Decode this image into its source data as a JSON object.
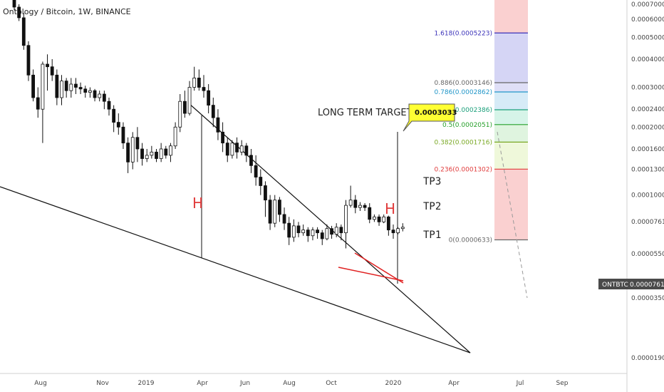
{
  "symbol": {
    "title": "Ontology / Bitcoin, 1W, BINANCE"
  },
  "price_tag": {
    "label": "ONTBTC",
    "value": "0.0000761",
    "color": "#4a4a4a"
  },
  "annotations": {
    "long_term_target": "LONG TERM TARGET",
    "target_value": "0.0003033",
    "target_bg": "#ffff33",
    "h_left": "H",
    "h_right": "H",
    "tp1": "TP1",
    "tp2": "TP2",
    "tp3": "TP3"
  },
  "y_axis_labels": [
    "0.0007000",
    "0.0006000",
    "0.0005000",
    "0.0004000",
    "0.0003000",
    "0.0002400",
    "0.0002000",
    "0.0001600",
    "0.0001300",
    "0.0001000",
    "0.0000761",
    "0.0000550",
    "0.0000350",
    "0.0000190"
  ],
  "x_axis_labels": [
    "Aug",
    "Nov",
    "2019",
    "Apr",
    "Jun",
    "Aug",
    "Oct",
    "2020",
    "Apr",
    "Jul",
    "Sep"
  ],
  "fib_levels": [
    {
      "label": "1.618(0.0005223)",
      "color": "#3b32b9"
    },
    {
      "label": "0.886(0.0003146)",
      "color": "#666666"
    },
    {
      "label": "0.786(0.0002862)",
      "color": "#2196c8"
    },
    {
      "label": "0.618(0.0002386)",
      "color": "#1a9f7a"
    },
    {
      "label": "0.5(0.0002051)",
      "color": "#27a02b"
    },
    {
      "label": "0.382(0.0001716)",
      "color": "#79a823"
    },
    {
      "label": "0.236(0.0001302)",
      "color": "#e03c3c"
    },
    {
      "label": "0(0.0000633)",
      "color": "#666666"
    }
  ],
  "chart_data": {
    "type": "candlestick",
    "title": "Ontology / Bitcoin, 1W, BINANCE",
    "y_scale": "log",
    "ylim": [
      1.68e-05,
      0.00075
    ],
    "candles": [
      {
        "o": 0.00074,
        "h": 0.00076,
        "c": 0.00068,
        "l": 0.00066
      },
      {
        "o": 0.00068,
        "h": 0.0007,
        "c": 0.00061,
        "l": 0.00059
      },
      {
        "o": 0.00061,
        "h": 0.00064,
        "c": 0.00046,
        "l": 0.00044
      },
      {
        "o": 0.00046,
        "h": 0.00048,
        "c": 0.00034,
        "l": 0.00032
      },
      {
        "o": 0.00034,
        "h": 0.00036,
        "c": 0.00027,
        "l": 0.00026
      },
      {
        "o": 0.00027,
        "h": 0.0003,
        "c": 0.00024,
        "l": 0.00022
      },
      {
        "o": 0.00024,
        "h": 0.00039,
        "c": 0.00038,
        "l": 0.00017
      },
      {
        "o": 0.00038,
        "h": 0.00042,
        "c": 0.00037,
        "l": 0.00029
      },
      {
        "o": 0.00037,
        "h": 0.0004,
        "c": 0.00034,
        "l": 0.00032
      },
      {
        "o": 0.00034,
        "h": 0.00036,
        "c": 0.00027,
        "l": 0.00025
      },
      {
        "o": 0.00027,
        "h": 0.00034,
        "c": 0.00032,
        "l": 0.00025
      },
      {
        "o": 0.00032,
        "h": 0.00033,
        "c": 0.00029,
        "l": 0.00027
      },
      {
        "o": 0.00029,
        "h": 0.00033,
        "c": 0.00031,
        "l": 0.00027
      },
      {
        "o": 0.00031,
        "h": 0.00033,
        "c": 0.0003,
        "l": 0.00028
      },
      {
        "o": 0.0003,
        "h": 0.000315,
        "c": 0.000295,
        "l": 0.00028
      },
      {
        "o": 0.000295,
        "h": 0.000305,
        "c": 0.000285,
        "l": 0.00027
      },
      {
        "o": 0.000285,
        "h": 0.0003,
        "c": 0.00029,
        "l": 0.00027
      },
      {
        "o": 0.00029,
        "h": 0.000295,
        "c": 0.00027,
        "l": 0.00026
      },
      {
        "o": 0.00027,
        "h": 0.00029,
        "c": 0.00028,
        "l": 0.00026
      },
      {
        "o": 0.00028,
        "h": 0.00029,
        "c": 0.00026,
        "l": 0.00024
      },
      {
        "o": 0.00026,
        "h": 0.00027,
        "c": 0.00024,
        "l": 0.000225
      },
      {
        "o": 0.00024,
        "h": 0.00025,
        "c": 0.00021,
        "l": 0.00019
      },
      {
        "o": 0.00021,
        "h": 0.00023,
        "c": 0.0002,
        "l": 0.000185
      },
      {
        "o": 0.0002,
        "h": 0.00021,
        "c": 0.00017,
        "l": 0.00016
      },
      {
        "o": 0.00017,
        "h": 0.00018,
        "c": 0.00014,
        "l": 0.000125
      },
      {
        "o": 0.00014,
        "h": 0.00019,
        "c": 0.00018,
        "l": 0.00013
      },
      {
        "o": 0.00018,
        "h": 0.0002,
        "c": 0.00016,
        "l": 0.00014
      },
      {
        "o": 0.00016,
        "h": 0.00017,
        "c": 0.000145,
        "l": 0.000135
      },
      {
        "o": 0.000145,
        "h": 0.00016,
        "c": 0.00015,
        "l": 0.00014
      },
      {
        "o": 0.00015,
        "h": 0.000165,
        "c": 0.000155,
        "l": 0.000145
      },
      {
        "o": 0.000155,
        "h": 0.00016,
        "c": 0.000145,
        "l": 0.00014
      },
      {
        "o": 0.000145,
        "h": 0.00017,
        "c": 0.00016,
        "l": 0.00014
      },
      {
        "o": 0.00016,
        "h": 0.000165,
        "c": 0.00015,
        "l": 0.000145
      },
      {
        "o": 0.00015,
        "h": 0.00017,
        "c": 0.000165,
        "l": 0.00014
      },
      {
        "o": 0.000165,
        "h": 0.00021,
        "c": 0.0002,
        "l": 0.00016
      },
      {
        "o": 0.0002,
        "h": 0.00028,
        "c": 0.00026,
        "l": 0.00019
      },
      {
        "o": 0.00026,
        "h": 0.00029,
        "c": 0.00023,
        "l": 0.00022
      },
      {
        "o": 0.00023,
        "h": 0.00032,
        "c": 0.0003,
        "l": 0.000225
      },
      {
        "o": 0.0003,
        "h": 0.00037,
        "c": 0.00033,
        "l": 0.00029
      },
      {
        "o": 0.00033,
        "h": 0.00036,
        "c": 0.0003,
        "l": 0.00029
      },
      {
        "o": 0.0003,
        "h": 0.00034,
        "c": 0.00029,
        "l": 0.00027
      },
      {
        "o": 0.00029,
        "h": 0.00031,
        "c": 0.00025,
        "l": 0.00023
      },
      {
        "o": 0.00025,
        "h": 0.00027,
        "c": 0.00022,
        "l": 0.0002
      },
      {
        "o": 0.00022,
        "h": 0.00024,
        "c": 0.00019,
        "l": 0.000175
      },
      {
        "o": 0.00019,
        "h": 0.00021,
        "c": 0.00017,
        "l": 0.000155
      },
      {
        "o": 0.00017,
        "h": 0.00018,
        "c": 0.00015,
        "l": 0.00014
      },
      {
        "o": 0.00015,
        "h": 0.000175,
        "c": 0.00017,
        "l": 0.000145
      },
      {
        "o": 0.00017,
        "h": 0.00018,
        "c": 0.000155,
        "l": 0.000145
      },
      {
        "o": 0.000155,
        "h": 0.000175,
        "c": 0.000165,
        "l": 0.00015
      },
      {
        "o": 0.000165,
        "h": 0.00017,
        "c": 0.00015,
        "l": 0.00014
      },
      {
        "o": 0.00015,
        "h": 0.00016,
        "c": 0.000135,
        "l": 0.000125
      },
      {
        "o": 0.000135,
        "h": 0.00015,
        "c": 0.00012,
        "l": 0.00011
      },
      {
        "o": 0.00012,
        "h": 0.00013,
        "c": 0.00011,
        "l": 0.0001
      },
      {
        "o": 0.00011,
        "h": 0.000115,
        "c": 9.5e-05,
        "l": 8e-05
      },
      {
        "o": 9.5e-05,
        "h": 0.0001,
        "c": 7.5e-05,
        "l": 7e-05
      },
      {
        "o": 7.5e-05,
        "h": 0.0001,
        "c": 9.5e-05,
        "l": 7.2e-05
      },
      {
        "o": 9.5e-05,
        "h": 9.8e-05,
        "c": 8.2e-05,
        "l": 7.6e-05
      },
      {
        "o": 8.2e-05,
        "h": 8.8e-05,
        "c": 7.5e-05,
        "l": 7e-05
      },
      {
        "o": 7.5e-05,
        "h": 8e-05,
        "c": 6.5e-05,
        "l": 6e-05
      },
      {
        "o": 6.5e-05,
        "h": 7.8e-05,
        "c": 7.3e-05,
        "l": 6.2e-05
      },
      {
        "o": 7.3e-05,
        "h": 7.6e-05,
        "c": 6.8e-05,
        "l": 6.5e-05
      },
      {
        "o": 6.8e-05,
        "h": 7.4e-05,
        "c": 7e-05,
        "l": 6.6e-05
      },
      {
        "o": 7e-05,
        "h": 7.2e-05,
        "c": 6.6e-05,
        "l": 6.2e-05
      },
      {
        "o": 6.6e-05,
        "h": 7.2e-05,
        "c": 7e-05,
        "l": 6.3e-05
      },
      {
        "o": 7e-05,
        "h": 7.2e-05,
        "c": 6.8e-05,
        "l": 6.4e-05
      },
      {
        "o": 6.8e-05,
        "h": 7e-05,
        "c": 6.4e-05,
        "l": 6e-05
      },
      {
        "o": 6.4e-05,
        "h": 7.4e-05,
        "c": 7.1e-05,
        "l": 6.3e-05
      },
      {
        "o": 7.1e-05,
        "h": 7.3e-05,
        "c": 6.7e-05,
        "l": 6.4e-05
      },
      {
        "o": 6.7e-05,
        "h": 7.5e-05,
        "c": 7.2e-05,
        "l": 6.5e-05
      },
      {
        "o": 7.2e-05,
        "h": 7.4e-05,
        "c": 6.8e-05,
        "l": 6.3e-05
      },
      {
        "o": 6.8e-05,
        "h": 9.5e-05,
        "c": 9e-05,
        "l": 5.8e-05
      },
      {
        "o": 9e-05,
        "h": 0.00011,
        "c": 9.5e-05,
        "l": 8.8e-05
      },
      {
        "o": 9.5e-05,
        "h": 0.0001,
        "c": 8.8e-05,
        "l": 8.3e-05
      },
      {
        "o": 8.8e-05,
        "h": 9.3e-05,
        "c": 9e-05,
        "l": 8.5e-05
      },
      {
        "o": 9e-05,
        "h": 9.2e-05,
        "c": 8.8e-05,
        "l": 8.5e-05
      },
      {
        "o": 8.8e-05,
        "h": 9.2e-05,
        "c": 7.8e-05,
        "l": 7.5e-05
      },
      {
        "o": 7.8e-05,
        "h": 8.2e-05,
        "c": 8e-05,
        "l": 7.6e-05
      },
      {
        "o": 8e-05,
        "h": 8.2e-05,
        "c": 7.6e-05,
        "l": 7.3e-05
      },
      {
        "o": 7.6e-05,
        "h": 8.2e-05,
        "c": 8e-05,
        "l": 7.5e-05
      },
      {
        "o": 8e-05,
        "h": 8.1e-05,
        "c": 7e-05,
        "l": 6.6e-05
      },
      {
        "o": 7e-05,
        "h": 7.4e-05,
        "c": 6.8e-05,
        "l": 6.4e-05
      },
      {
        "o": 6.8e-05,
        "h": 7.2e-05,
        "c": 7.1e-05,
        "l": 6.7e-05
      },
      {
        "o": 7.1e-05,
        "h": 7.5e-05,
        "c": 7.2e-05,
        "l": 6.9e-05
      }
    ],
    "fib_retracement": {
      "levels": [
        1.618,
        0.886,
        0.786,
        0.618,
        0.5,
        0.382,
        0.236,
        0
      ],
      "prices": [
        0.0005223,
        0.0003146,
        0.0002862,
        0.0002386,
        0.0002051,
        0.0001716,
        0.0001302,
        6.33e-05
      ]
    },
    "target_price": 0.0003033,
    "last_price": 7.61e-05
  }
}
